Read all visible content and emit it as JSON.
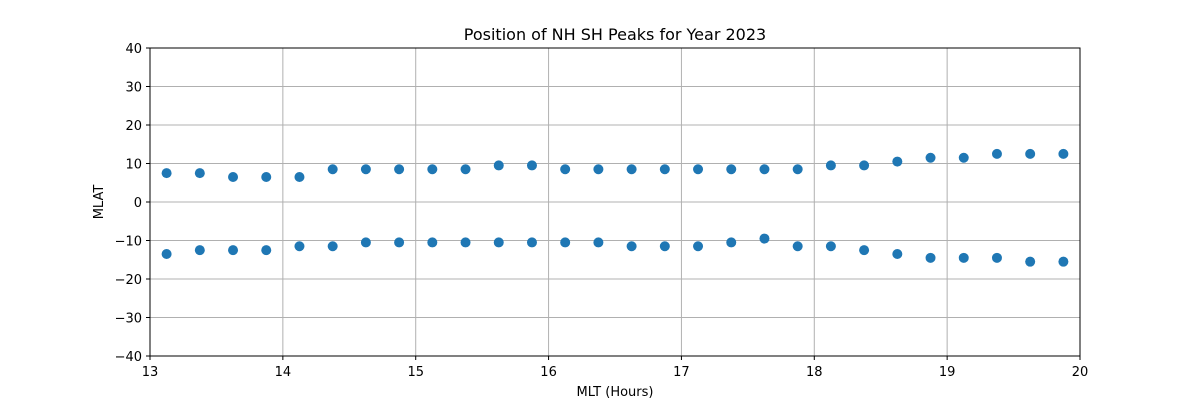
{
  "chart_data": {
    "type": "scatter",
    "title": "Position of NH SH Peaks for Year 2023",
    "xlabel": "MLT (Hours)",
    "ylabel": "MLAT",
    "xlim": [
      13,
      20
    ],
    "ylim": [
      -40,
      40
    ],
    "xticks": [
      13,
      14,
      15,
      16,
      17,
      18,
      19,
      20
    ],
    "yticks": [
      -40,
      -30,
      -20,
      -10,
      0,
      10,
      20,
      30,
      40
    ],
    "grid": true,
    "marker_color": "#1f77b4",
    "series": [
      {
        "x": [
          13.125,
          13.375,
          13.625,
          13.875,
          14.125,
          14.375,
          14.625,
          14.875,
          15.125,
          15.375,
          15.625,
          15.875,
          16.125,
          16.375,
          16.625,
          16.875,
          17.125,
          17.375,
          17.625,
          17.875,
          18.125,
          18.375,
          18.625,
          18.875,
          19.125,
          19.375,
          19.625,
          19.875
        ],
        "y": [
          7.5,
          7.5,
          6.5,
          6.5,
          6.5,
          8.5,
          8.5,
          8.5,
          8.5,
          8.5,
          9.5,
          9.5,
          8.5,
          8.5,
          8.5,
          8.5,
          8.5,
          8.5,
          8.5,
          8.5,
          9.5,
          9.5,
          10.5,
          11.5,
          11.5,
          12.5,
          12.5,
          12.5
        ]
      },
      {
        "x": [
          13.125,
          13.375,
          13.625,
          13.875,
          14.125,
          14.375,
          14.625,
          14.875,
          15.125,
          15.375,
          15.625,
          15.875,
          16.125,
          16.375,
          16.625,
          16.875,
          17.125,
          17.375,
          17.625,
          17.875,
          18.125,
          18.375,
          18.625,
          18.875,
          19.125,
          19.375,
          19.625,
          19.875
        ],
        "y": [
          -13.5,
          -12.5,
          -12.5,
          -12.5,
          -11.5,
          -11.5,
          -10.5,
          -10.5,
          -10.5,
          -10.5,
          -10.5,
          -10.5,
          -10.5,
          -10.5,
          -11.5,
          -11.5,
          -11.5,
          -10.5,
          -9.5,
          -11.5,
          -11.5,
          -12.5,
          -13.5,
          -14.5,
          -14.5,
          -14.5,
          -15.5,
          -15.5
        ]
      }
    ]
  }
}
